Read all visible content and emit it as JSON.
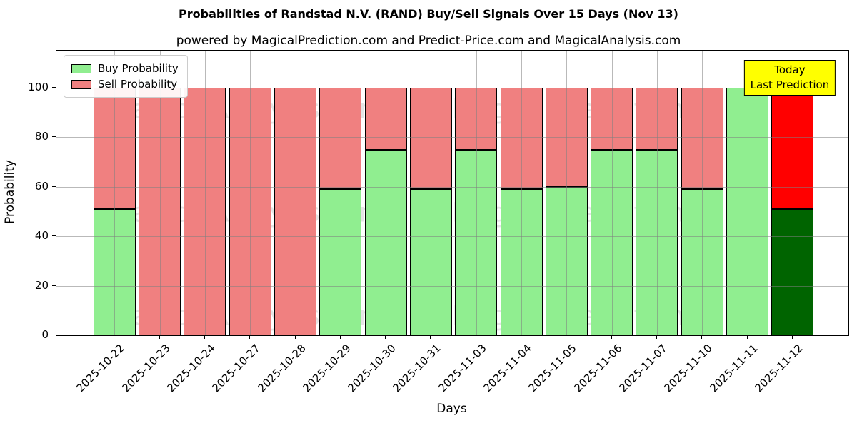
{
  "chart_data": {
    "type": "bar",
    "stacked": true,
    "title": "Probabilities of Randstad N.V. (RAND) Buy/Sell Signals Over 15 Days (Nov 13)",
    "subtitle": "powered by MagicalPrediction.com and Predict-Price.com and MagicalAnalysis.com",
    "xlabel": "Days",
    "ylabel": "Probability",
    "ylim": [
      0,
      115
    ],
    "yticks": [
      0,
      20,
      40,
      60,
      80,
      100
    ],
    "grid": "both, drawn above bars",
    "legend_position": "upper left",
    "dashed_threshold_y": 110,
    "categories": [
      "2025-10-22",
      "2025-10-23",
      "2025-10-24",
      "2025-10-27",
      "2025-10-28",
      "2025-10-29",
      "2025-10-30",
      "2025-10-31",
      "2025-11-03",
      "2025-11-04",
      "2025-11-05",
      "2025-11-06",
      "2025-11-07",
      "2025-11-10",
      "2025-11-11",
      "2025-11-12"
    ],
    "series": [
      {
        "name": "Buy Probability",
        "color": "#90ee90",
        "values": [
          51,
          0,
          0,
          0,
          0,
          59,
          75,
          59,
          75,
          59,
          60,
          75,
          75,
          59,
          100,
          51
        ]
      },
      {
        "name": "Sell Probability",
        "color": "#f08080",
        "values": [
          49,
          100,
          100,
          100,
          100,
          41,
          25,
          41,
          25,
          41,
          40,
          25,
          25,
          41,
          0,
          49
        ]
      }
    ],
    "today_bar": {
      "index": 15,
      "date": "2025-11-12",
      "buy_color": "#006400",
      "sell_color": "#ff0000",
      "annotation_lines": [
        "Today",
        "Last Prediction"
      ],
      "annotation_bg": "#ffff00"
    },
    "bar_edge_color": "#000000",
    "watermarks": [
      "MagicalAnalysis.com",
      "MagicalPrediction.com"
    ]
  }
}
